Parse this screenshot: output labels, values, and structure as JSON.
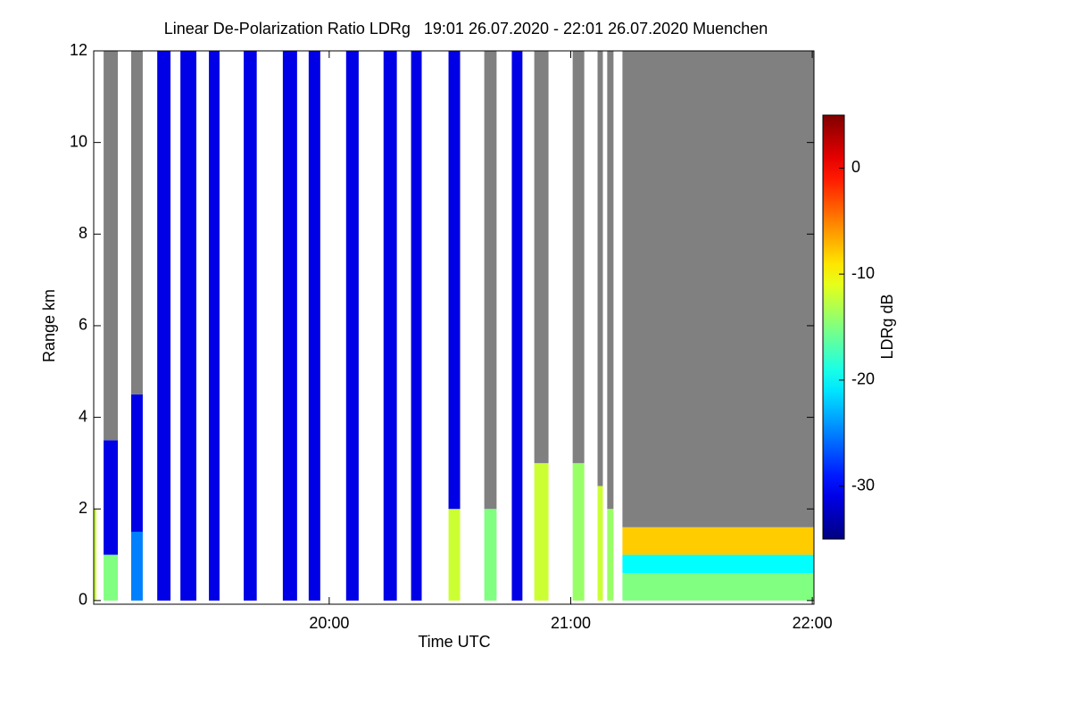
{
  "chart_data": {
    "type": "heatmap",
    "title": "Linear De-Polarization Ratio LDRg   19:01 26.07.2020 - 22:01 26.07.2020 Muenchen",
    "xlabel": "Time UTC",
    "ylabel": "Range km",
    "colorbar_label": "LDRg dB",
    "colormap": "jet",
    "nodata_color": "#808080",
    "xlim": [
      19.025,
      22.007
    ],
    "xticks": [
      {
        "value": 20,
        "label": "20:00"
      },
      {
        "value": 21,
        "label": "21:00"
      },
      {
        "value": 22,
        "label": "22:00"
      }
    ],
    "ylim": [
      -0.08,
      12
    ],
    "yticks": [
      0,
      2,
      4,
      6,
      8,
      10,
      12
    ],
    "clim": [
      -35,
      5
    ],
    "cticks": [
      0,
      -10,
      -20,
      -30
    ],
    "profiles": [
      {
        "x": [
          19.025,
          19.036
        ],
        "layers": [
          [
            0,
            2,
            -12
          ]
        ]
      },
      {
        "x": [
          19.066,
          19.125
        ],
        "layers": [
          [
            0,
            1,
            -15
          ],
          [
            1,
            3.5,
            -31
          ],
          [
            3.5,
            12,
            null
          ]
        ]
      },
      {
        "x": [
          19.18,
          19.228
        ],
        "layers": [
          [
            0,
            1.5,
            -25
          ],
          [
            1.5,
            4.5,
            -31
          ],
          [
            4.5,
            12,
            null
          ]
        ]
      },
      {
        "x": [
          19.288,
          19.343
        ],
        "layers": [
          [
            0,
            12,
            -31
          ]
        ]
      },
      {
        "x": [
          19.384,
          19.45
        ],
        "layers": [
          [
            0,
            12,
            -31
          ]
        ]
      },
      {
        "x": [
          19.502,
          19.546
        ],
        "layers": [
          [
            0,
            12,
            -31
          ]
        ]
      },
      {
        "x": [
          19.646,
          19.7
        ],
        "layers": [
          [
            0,
            12,
            -31
          ]
        ]
      },
      {
        "x": [
          19.808,
          19.867
        ],
        "layers": [
          [
            0,
            12,
            -31
          ]
        ]
      },
      {
        "x": [
          19.915,
          19.963
        ],
        "layers": [
          [
            0,
            12,
            -31
          ]
        ]
      },
      {
        "x": [
          20.07,
          20.122
        ],
        "layers": [
          [
            0,
            12,
            -31
          ]
        ]
      },
      {
        "x": [
          20.225,
          20.28
        ],
        "layers": [
          [
            0,
            12,
            -31
          ]
        ]
      },
      {
        "x": [
          20.339,
          20.383
        ],
        "layers": [
          [
            0,
            12,
            -31
          ]
        ]
      },
      {
        "x": [
          20.494,
          20.542
        ],
        "layers": [
          [
            0,
            2,
            -12
          ],
          [
            2,
            12,
            -31
          ]
        ]
      },
      {
        "x": [
          20.642,
          20.693
        ],
        "layers": [
          [
            0,
            2,
            -15
          ],
          [
            2,
            12,
            null
          ]
        ]
      },
      {
        "x": [
          20.756,
          20.8
        ],
        "layers": [
          [
            0,
            12,
            -31
          ]
        ]
      },
      {
        "x": [
          20.849,
          20.908
        ],
        "layers": [
          [
            0,
            3,
            -12
          ],
          [
            3,
            12,
            null
          ]
        ]
      },
      {
        "x": [
          21.008,
          21.056
        ],
        "layers": [
          [
            0,
            3,
            -14
          ],
          [
            3,
            12,
            null
          ]
        ]
      },
      {
        "x": [
          21.111,
          21.133
        ],
        "layers": [
          [
            0,
            2.5,
            -12
          ],
          [
            2.5,
            12,
            null
          ]
        ]
      },
      {
        "x": [
          21.151,
          21.177
        ],
        "layers": [
          [
            0,
            2,
            -14
          ],
          [
            2,
            12,
            null
          ]
        ]
      },
      {
        "x": [
          21.214,
          22.007
        ],
        "layers": [
          [
            0,
            0.6,
            -15
          ],
          [
            0.6,
            1,
            -20
          ],
          [
            1,
            1.6,
            -8
          ],
          [
            1.6,
            12,
            null
          ]
        ]
      }
    ]
  }
}
